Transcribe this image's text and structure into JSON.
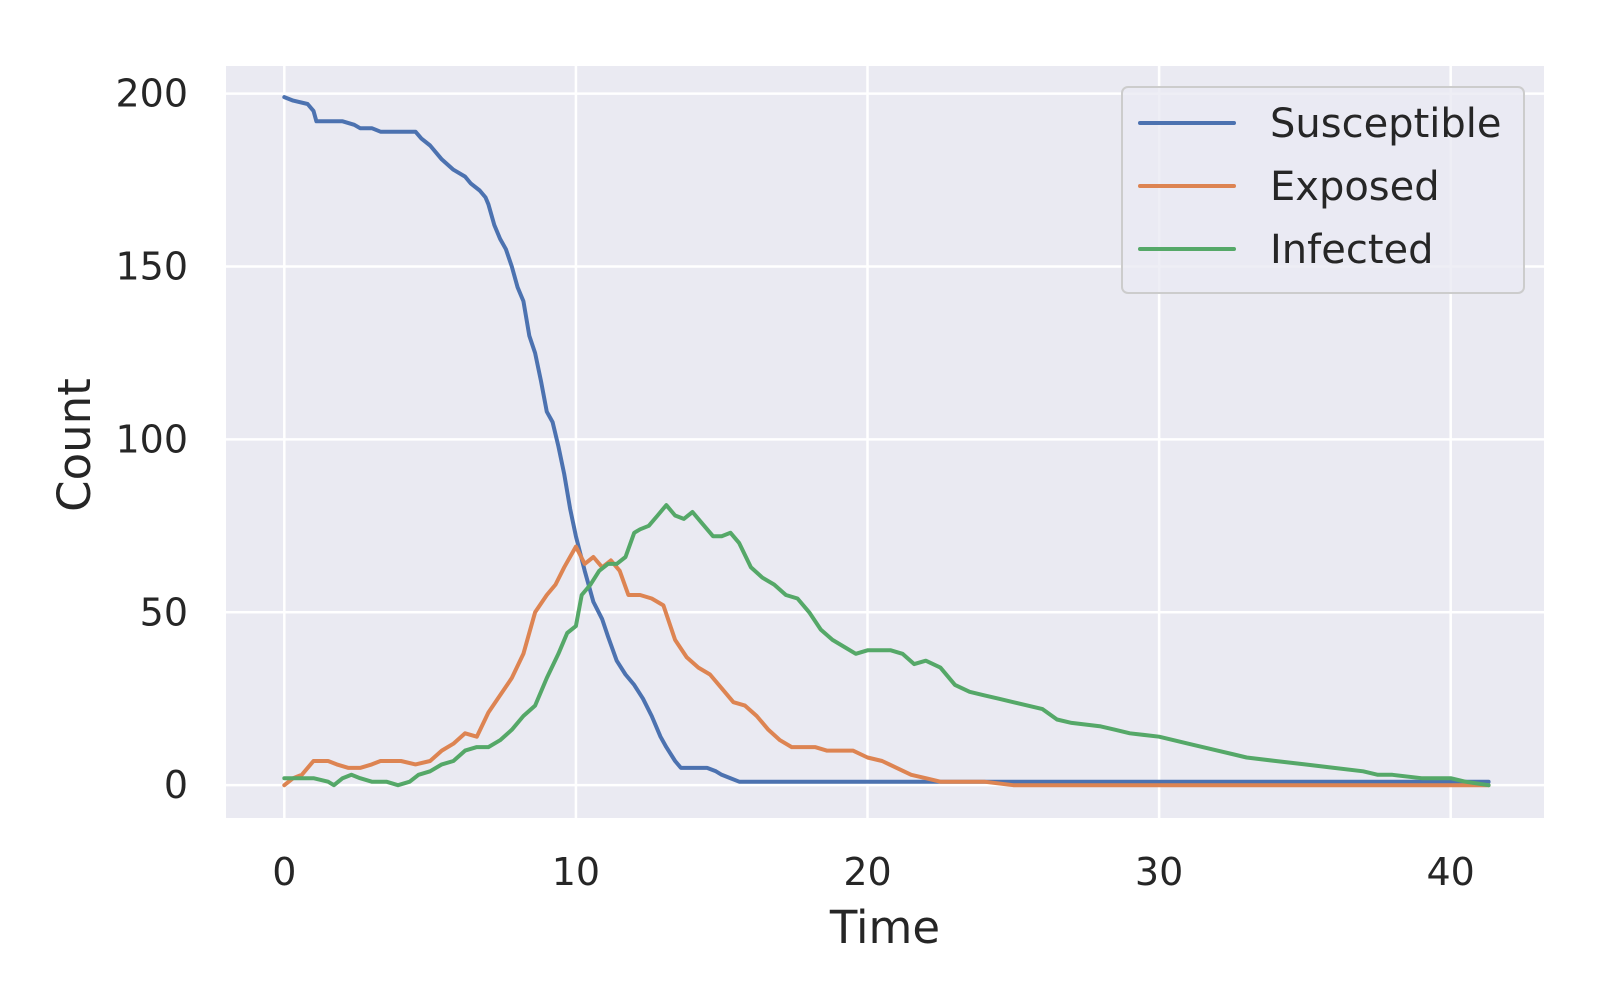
{
  "chart_data": {
    "type": "line",
    "title": "",
    "xlabel": "Time",
    "ylabel": "Count",
    "xlim": [
      -2,
      43.2
    ],
    "ylim": [
      -9.5,
      208
    ],
    "xticks": [
      0,
      10,
      20,
      30,
      40
    ],
    "yticks": [
      0,
      50,
      100,
      150,
      200
    ],
    "grid": true,
    "legend_position": "top-right",
    "background": "#eaeaf2",
    "series": [
      {
        "name": "Susceptible",
        "color": "#4c72b0",
        "x": [
          0,
          0.3,
          0.8,
          1.0,
          1.1,
          2.0,
          2.4,
          2.6,
          3.0,
          3.3,
          4.5,
          4.7,
          5.0,
          5.4,
          5.8,
          6.2,
          6.4,
          6.7,
          6.9,
          7.0,
          7.2,
          7.4,
          7.6,
          7.8,
          8.0,
          8.2,
          8.4,
          8.6,
          8.8,
          9.0,
          9.2,
          9.4,
          9.6,
          9.8,
          10.0,
          10.3,
          10.6,
          10.9,
          11.1,
          11.4,
          11.7,
          12.0,
          12.3,
          12.6,
          12.9,
          13.1,
          13.4,
          13.6,
          14.0,
          14.5,
          14.8,
          15.0,
          15.3,
          15.6,
          16.0,
          20.0,
          25.0,
          30.0,
          35.0,
          41.3
        ],
        "y": [
          199,
          198,
          197,
          195,
          192,
          192,
          191,
          190,
          190,
          189,
          189,
          187,
          185,
          181,
          178,
          176,
          174,
          172,
          170,
          168,
          162,
          158,
          155,
          150,
          144,
          140,
          130,
          125,
          117,
          108,
          105,
          98,
          90,
          80,
          72,
          62,
          53,
          48,
          43,
          36,
          32,
          29,
          25,
          20,
          14,
          11,
          7,
          5,
          5,
          5,
          4,
          3,
          2,
          1,
          1,
          1,
          1,
          1,
          1,
          1
        ]
      },
      {
        "name": "Exposed",
        "color": "#dd8452",
        "x": [
          0,
          0.3,
          0.6,
          1.0,
          1.5,
          1.8,
          2.2,
          2.6,
          3.0,
          3.3,
          4.0,
          4.5,
          5.0,
          5.4,
          5.8,
          6.2,
          6.6,
          7.0,
          7.4,
          7.8,
          8.2,
          8.6,
          9.0,
          9.3,
          9.6,
          10.0,
          10.3,
          10.6,
          10.9,
          11.2,
          11.5,
          11.8,
          12.2,
          12.6,
          13.0,
          13.4,
          13.8,
          14.2,
          14.6,
          15.0,
          15.4,
          15.8,
          16.2,
          16.6,
          17.0,
          17.4,
          17.8,
          18.2,
          18.6,
          19.0,
          19.5,
          20.0,
          20.5,
          21.0,
          21.5,
          22.0,
          22.5,
          24.0,
          25.0,
          30.0,
          35.0,
          41.3
        ],
        "y": [
          0,
          2,
          3,
          7,
          7,
          6,
          5,
          5,
          6,
          7,
          7,
          6,
          7,
          10,
          12,
          15,
          14,
          21,
          26,
          31,
          38,
          50,
          55,
          58,
          63,
          69,
          64,
          66,
          63,
          65,
          62,
          55,
          55,
          54,
          52,
          42,
          37,
          34,
          32,
          28,
          24,
          23,
          20,
          16,
          13,
          11,
          11,
          11,
          10,
          10,
          10,
          8,
          7,
          5,
          3,
          2,
          1,
          1,
          0,
          0,
          0,
          0
        ]
      },
      {
        "name": "Infected",
        "color": "#55a868",
        "x": [
          0,
          0.5,
          1.0,
          1.5,
          1.7,
          2.0,
          2.3,
          2.6,
          3.0,
          3.5,
          3.9,
          4.3,
          4.6,
          5.0,
          5.4,
          5.8,
          6.2,
          6.6,
          7.0,
          7.4,
          7.8,
          8.2,
          8.6,
          9.0,
          9.4,
          9.7,
          10.0,
          10.2,
          10.5,
          10.8,
          11.1,
          11.4,
          11.7,
          12.0,
          12.2,
          12.5,
          12.8,
          13.1,
          13.4,
          13.7,
          14.0,
          14.3,
          14.7,
          15.0,
          15.3,
          15.6,
          16.0,
          16.4,
          16.8,
          17.2,
          17.6,
          18.0,
          18.4,
          18.8,
          19.2,
          19.6,
          20.0,
          20.4,
          20.8,
          21.2,
          21.6,
          22.0,
          22.5,
          23.0,
          23.5,
          24.0,
          24.5,
          25.0,
          26.0,
          26.5,
          27.0,
          28.0,
          28.5,
          29.0,
          30.0,
          30.5,
          31.0,
          32.0,
          32.5,
          33.0,
          34.0,
          35.0,
          36.0,
          37.0,
          37.5,
          38.0,
          39.0,
          40.0,
          40.5,
          41.3
        ],
        "y": [
          2,
          2,
          2,
          1,
          0,
          2,
          3,
          2,
          1,
          1,
          0,
          1,
          3,
          4,
          6,
          7,
          10,
          11,
          11,
          13,
          16,
          20,
          23,
          31,
          38,
          44,
          46,
          55,
          58,
          62,
          64,
          64,
          66,
          73,
          74,
          75,
          78,
          81,
          78,
          77,
          79,
          76,
          72,
          72,
          73,
          70,
          63,
          60,
          58,
          55,
          54,
          50,
          45,
          42,
          40,
          38,
          39,
          39,
          39,
          38,
          35,
          36,
          34,
          29,
          27,
          26,
          25,
          24,
          22,
          19,
          18,
          17,
          16,
          15,
          14,
          13,
          12,
          10,
          9,
          8,
          7,
          6,
          5,
          4,
          3,
          3,
          2,
          2,
          1,
          0
        ]
      }
    ]
  }
}
